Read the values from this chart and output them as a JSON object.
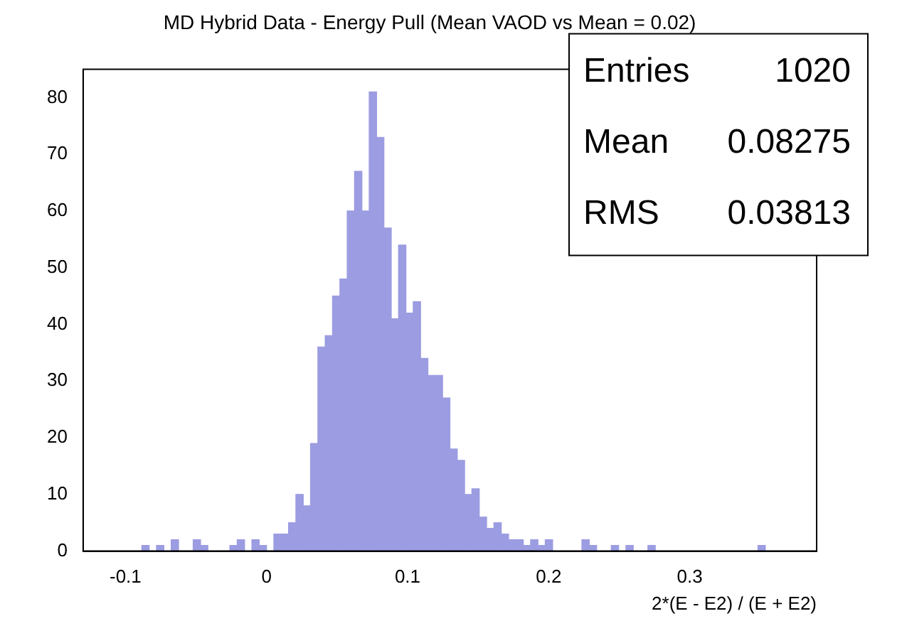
{
  "chart_data": {
    "type": "histogram",
    "title": "MD Hybrid Data - Energy Pull (Mean VAOD vs Mean = 0.02)",
    "xlabel": "2*(E - E2) / (E + E2)",
    "bins": [
      -0.13,
      -0.1248,
      -0.1196,
      -0.1144,
      -0.1092,
      -0.104,
      -0.0988,
      -0.0936,
      -0.0884,
      -0.0832,
      -0.078,
      -0.0728,
      -0.0676,
      -0.0624,
      -0.0572,
      -0.052,
      -0.0468,
      -0.0416,
      -0.0364,
      -0.0312,
      -0.026,
      -0.0208,
      -0.0156,
      -0.0104,
      -0.0052,
      0,
      0.0052,
      0.0104,
      0.0156,
      0.0208,
      0.026,
      0.0312,
      0.0364,
      0.0416,
      0.0468,
      0.052,
      0.0572,
      0.0624,
      0.0676,
      0.0728,
      0.078,
      0.0832,
      0.0884,
      0.0936,
      0.0988,
      0.104,
      0.1092,
      0.1144,
      0.1196,
      0.1248,
      0.13,
      0.1352,
      0.1404,
      0.1456,
      0.1508,
      0.156,
      0.1612,
      0.1664,
      0.1716,
      0.1768,
      0.182,
      0.1872,
      0.1924,
      0.1976,
      0.2028,
      0.208,
      0.2132,
      0.2184,
      0.2236,
      0.2288,
      0.234,
      0.2392,
      0.2444,
      0.2496,
      0.2548,
      0.26,
      0.2652,
      0.2704,
      0.2756,
      0.2808,
      0.286,
      0.2912,
      0.2964,
      0.3016,
      0.3068,
      0.312,
      0.3172,
      0.3224,
      0.3276,
      0.3328,
      0.338,
      0.3432,
      0.3484,
      0.3536,
      0.3588,
      0.364,
      0.3692,
      0.3744,
      0.3796,
      0.3848,
      0.39
    ],
    "values": [
      0,
      0,
      0,
      0,
      0,
      0,
      0,
      0,
      1,
      0,
      1,
      0,
      2,
      0,
      0,
      2,
      1,
      0,
      0,
      0,
      1,
      2,
      0,
      2,
      1,
      0,
      3,
      3,
      5,
      10,
      8,
      19,
      36,
      38,
      45,
      48,
      60,
      67,
      60,
      81,
      73,
      57,
      41,
      54,
      42,
      44,
      34,
      31,
      31,
      27,
      18,
      16,
      10,
      11,
      6,
      4,
      5,
      3,
      2,
      2,
      1,
      2,
      1,
      2,
      0,
      0,
      0,
      0,
      2,
      1,
      0,
      0,
      1,
      0,
      1,
      0,
      0,
      1,
      0,
      0,
      0,
      0,
      0,
      0,
      0,
      0,
      0,
      0,
      0,
      0,
      0,
      0,
      1,
      0,
      0,
      0,
      0,
      0,
      0,
      0
    ],
    "color": "#9c9ce2",
    "xlim": [
      -0.13,
      0.39
    ],
    "xticks": [
      -0.1,
      0,
      0.1,
      0.2,
      0.3
    ],
    "ylim": [
      0,
      85
    ],
    "yticks": [
      0,
      10,
      20,
      30,
      40,
      50,
      60,
      70,
      80
    ],
    "grid": false,
    "legend": false,
    "annotations": [
      "Entries 1020",
      "Mean 0.08275",
      "RMS 0.03813"
    ]
  }
}
